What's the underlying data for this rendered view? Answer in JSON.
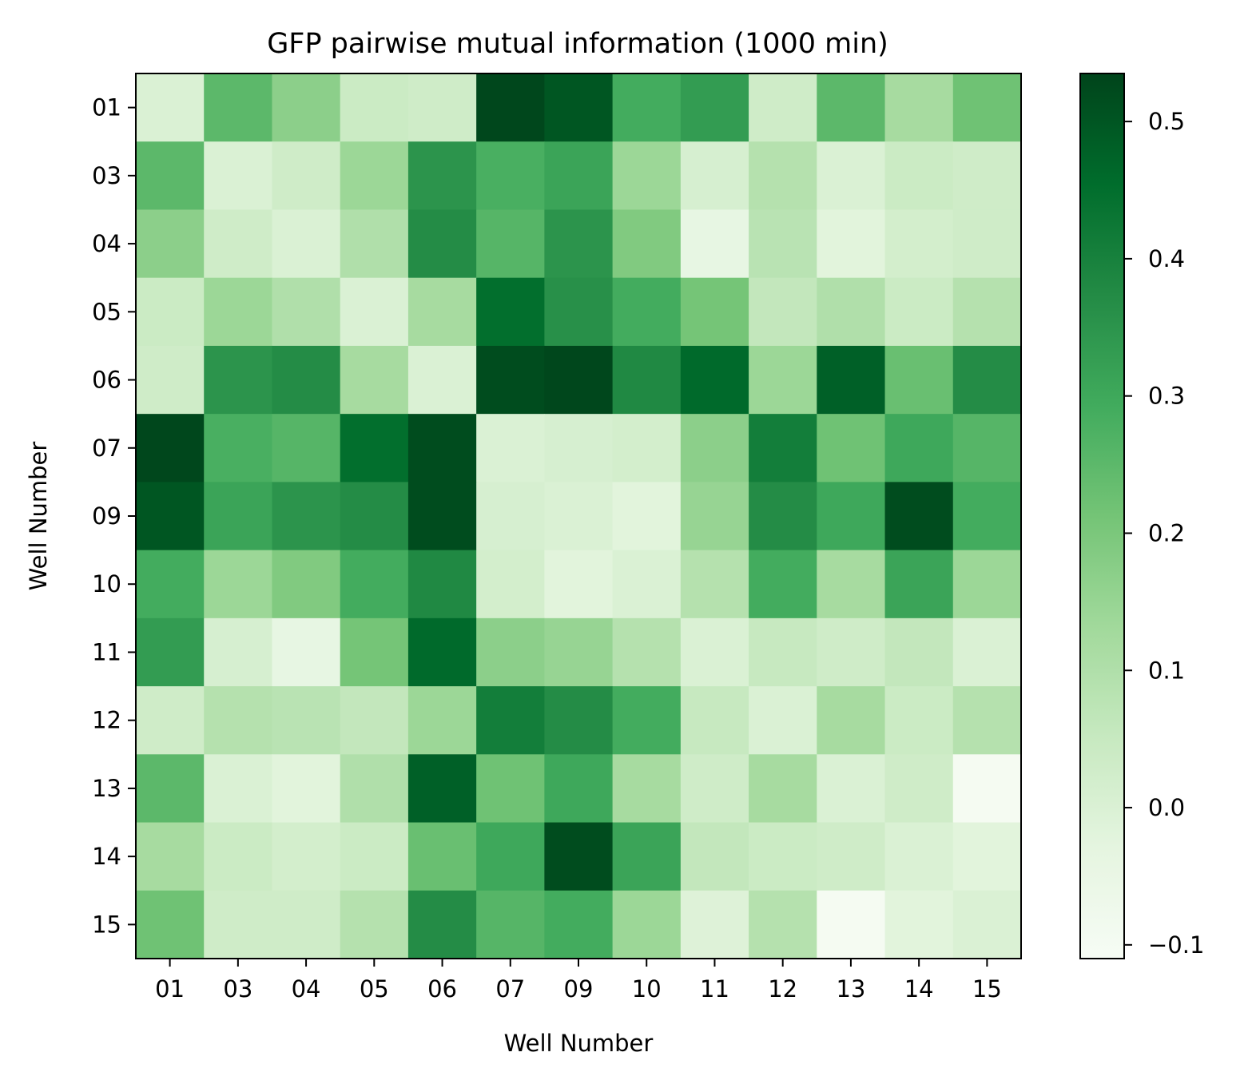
{
  "chart_data": {
    "type": "heatmap",
    "title": "GFP pairwise mutual information (1000 min)",
    "xlabel": "Well Number",
    "ylabel": "Well Number",
    "x_categories": [
      "01",
      "03",
      "04",
      "05",
      "06",
      "07",
      "09",
      "10",
      "11",
      "12",
      "13",
      "14",
      "15"
    ],
    "y_categories": [
      "01",
      "03",
      "04",
      "05",
      "06",
      "07",
      "09",
      "10",
      "11",
      "12",
      "13",
      "14",
      "15"
    ],
    "colormap": "Greens",
    "vmin": -0.11,
    "vmax": 0.535,
    "colorbar_ticks": [
      {
        "value": 0.5,
        "label": "0.5"
      },
      {
        "value": 0.4,
        "label": "0.4"
      },
      {
        "value": 0.3,
        "label": "0.3"
      },
      {
        "value": 0.2,
        "label": "0.2"
      },
      {
        "value": 0.1,
        "label": "0.1"
      },
      {
        "value": 0.0,
        "label": "0.0"
      },
      {
        "value": -0.1,
        "label": "−0.1"
      }
    ],
    "grid": false,
    "values": [
      [
        0.0,
        0.25,
        0.17,
        0.04,
        0.03,
        0.53,
        0.5,
        0.29,
        0.33,
        0.03,
        0.25,
        0.12,
        0.22
      ],
      [
        0.25,
        0.0,
        0.03,
        0.14,
        0.35,
        0.28,
        0.31,
        0.14,
        0.01,
        0.09,
        0.0,
        0.04,
        0.03
      ],
      [
        0.17,
        0.03,
        0.0,
        0.1,
        0.37,
        0.26,
        0.35,
        0.19,
        -0.04,
        0.08,
        -0.02,
        0.02,
        0.03
      ],
      [
        0.04,
        0.14,
        0.1,
        0.0,
        0.12,
        0.45,
        0.36,
        0.29,
        0.21,
        0.06,
        0.1,
        0.04,
        0.09
      ],
      [
        0.03,
        0.35,
        0.37,
        0.12,
        0.0,
        0.52,
        0.53,
        0.38,
        0.46,
        0.14,
        0.48,
        0.23,
        0.37
      ],
      [
        0.53,
        0.28,
        0.26,
        0.45,
        0.52,
        0.0,
        0.01,
        0.02,
        0.17,
        0.41,
        0.22,
        0.3,
        0.26
      ],
      [
        0.5,
        0.31,
        0.35,
        0.37,
        0.52,
        0.01,
        0.0,
        -0.02,
        0.15,
        0.37,
        0.3,
        0.52,
        0.29
      ],
      [
        0.29,
        0.14,
        0.19,
        0.29,
        0.38,
        0.02,
        -0.02,
        0.0,
        0.09,
        0.29,
        0.12,
        0.31,
        0.14
      ],
      [
        0.33,
        0.01,
        -0.04,
        0.21,
        0.46,
        0.17,
        0.15,
        0.09,
        0.0,
        0.05,
        0.03,
        0.06,
        0.0
      ],
      [
        0.03,
        0.09,
        0.08,
        0.06,
        0.14,
        0.41,
        0.37,
        0.29,
        0.05,
        0.0,
        0.12,
        0.04,
        0.09
      ],
      [
        0.25,
        0.0,
        -0.02,
        0.1,
        0.48,
        0.22,
        0.3,
        0.12,
        0.03,
        0.12,
        0.0,
        0.03,
        -0.1
      ],
      [
        0.12,
        0.04,
        0.02,
        0.04,
        0.23,
        0.3,
        0.52,
        0.31,
        0.06,
        0.04,
        0.03,
        0.0,
        -0.02
      ],
      [
        0.22,
        0.03,
        0.03,
        0.09,
        0.37,
        0.26,
        0.29,
        0.14,
        -0.01,
        0.09,
        -0.1,
        -0.02,
        0.0
      ]
    ]
  }
}
